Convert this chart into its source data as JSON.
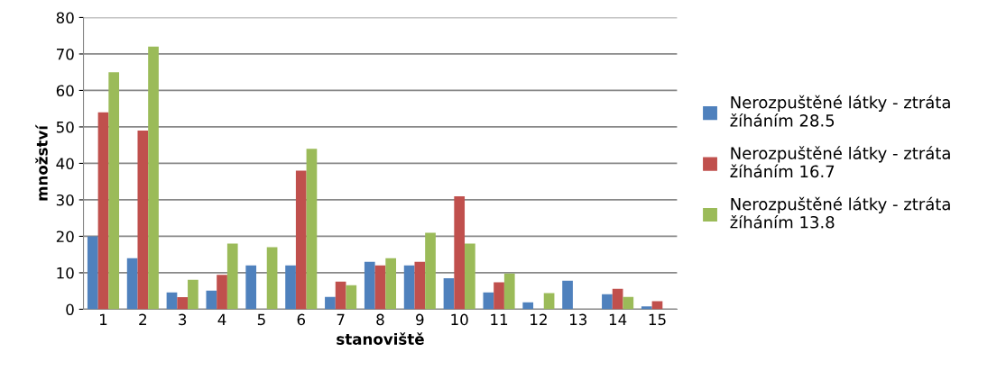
{
  "chart_data": {
    "type": "bar",
    "xlabel": "stanoviště",
    "ylabel": "množství",
    "categories": [
      "1",
      "2",
      "3",
      "4",
      "5",
      "6",
      "7",
      "8",
      "9",
      "10",
      "11",
      "12",
      "13",
      "14",
      "15"
    ],
    "series": [
      {
        "name": "Nerozpuštěné látky - ztráta žíháním 28.5",
        "color": "#4f81bd",
        "values": [
          20,
          14,
          4.6,
          5.1,
          12,
          12,
          3.4,
          13,
          12,
          8.5,
          4.6,
          1.9,
          7.8,
          4.1,
          0.8
        ]
      },
      {
        "name": "Nerozpuštěné látky - ztráta žíháním 16.7",
        "color": "#c0504d",
        "values": [
          54,
          49,
          3.3,
          9.4,
          null,
          38,
          7.6,
          12,
          13,
          31,
          7.4,
          null,
          null,
          5.6,
          2.2
        ]
      },
      {
        "name": "Nerozpuštěné látky - ztráta žíháním 13.8",
        "color": "#9bbb59",
        "values": [
          65,
          72,
          8.1,
          18,
          17,
          44,
          6.6,
          14,
          21,
          18,
          9.8,
          4.4,
          null,
          3.4,
          null
        ]
      }
    ],
    "ylim": [
      0,
      80
    ],
    "yticks": [
      0,
      10,
      20,
      30,
      40,
      50,
      60,
      70,
      80
    ],
    "grid": "y",
    "legend": "right"
  }
}
